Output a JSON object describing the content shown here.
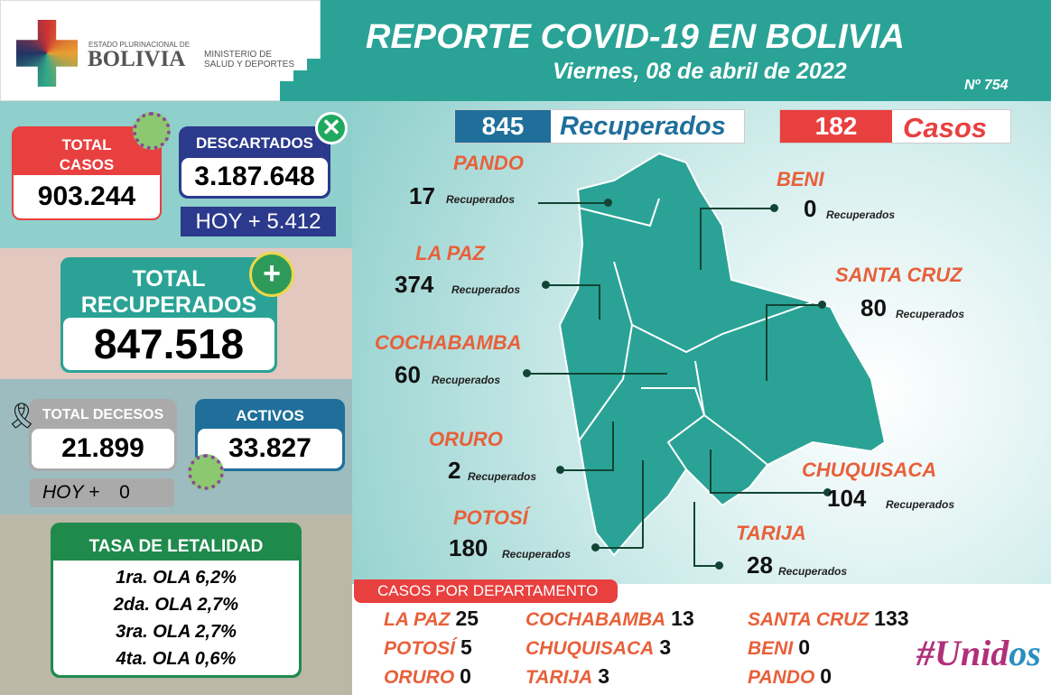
{
  "header": {
    "logo_small": "ESTADO PLURINACIONAL DE",
    "logo_big": "BOLIVIA",
    "ministry_line1": "MINISTERIO DE",
    "ministry_line2": "SALUD Y DEPORTES",
    "title": "REPORTE COVID-19 EN BOLIVIA",
    "date": "Viernes, 08 de abril de 2022",
    "report_number": "Nº 754"
  },
  "stats": {
    "total_casos_label": "TOTAL CASOS",
    "total_casos": "903.244",
    "descartados_label": "DESCARTADOS",
    "descartados": "3.187.648",
    "descartados_hoy": "HOY + 5.412",
    "recuperados_label_1": "TOTAL",
    "recuperados_label_2": "RECUPERADOS",
    "recuperados": "847.518",
    "decesos_label": "TOTAL DECESOS",
    "decesos": "21.899",
    "decesos_hoy_label": "HOY +",
    "decesos_hoy": "0",
    "activos_label": "ACTIVOS",
    "activos": "33.827"
  },
  "letalidad": {
    "title": "TASA DE LETALIDAD",
    "rows": [
      "1ra. OLA 6,2%",
      "2da. OLA 2,7%",
      "3ra. OLA 2,7%",
      "4ta. OLA 0,6%"
    ]
  },
  "daily": {
    "recuperados_num": "845",
    "recuperados_label": "Recuperados",
    "casos_num": "182",
    "casos_label": "Casos"
  },
  "map": {
    "unit": "Recuperados",
    "departments": [
      {
        "name": "PANDO",
        "value": "17"
      },
      {
        "name": "BENI",
        "value": "0"
      },
      {
        "name": "LA PAZ",
        "value": "374"
      },
      {
        "name": "SANTA CRUZ",
        "value": "80"
      },
      {
        "name": "COCHABAMBA",
        "value": "60"
      },
      {
        "name": "ORURO",
        "value": "2"
      },
      {
        "name": "CHUQUISACA",
        "value": "104"
      },
      {
        "name": "POTOSÍ",
        "value": "180"
      },
      {
        "name": "TARIJA",
        "value": "28"
      }
    ]
  },
  "casos_departamento": {
    "title": "CASOS POR DEPARTAMENTO",
    "items": [
      {
        "name": "LA PAZ",
        "value": "25"
      },
      {
        "name": "COCHABAMBA",
        "value": "13"
      },
      {
        "name": "SANTA CRUZ",
        "value": "133"
      },
      {
        "name": "POTOSÍ",
        "value": "5"
      },
      {
        "name": "CHUQUISACA",
        "value": "3"
      },
      {
        "name": "BENI",
        "value": "0"
      },
      {
        "name": "ORURO",
        "value": "0"
      },
      {
        "name": "TARIJA",
        "value": "3"
      },
      {
        "name": "PANDO",
        "value": "0"
      }
    ]
  },
  "campaign": {
    "logo_text": "#Unidos ContraElCovid"
  },
  "colors": {
    "teal": "#2aa396",
    "red": "#e8403f",
    "navy": "#2b3a8c",
    "blue": "#1f6f9a",
    "green": "#1f8a4c",
    "orange": "#e8603a"
  }
}
